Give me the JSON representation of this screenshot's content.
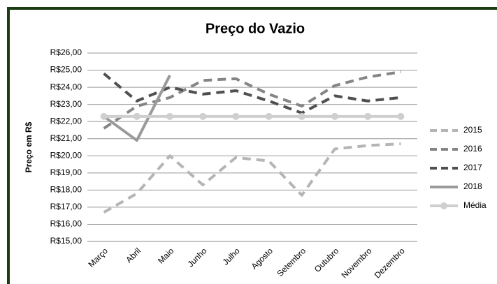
{
  "chart_data": {
    "type": "line",
    "title": "Preço do Vazio",
    "y_label": "Preço em R$",
    "categories": [
      "Março",
      "Abril",
      "Maio",
      "Junho",
      "Julho",
      "Agosto",
      "Setembro",
      "Outubro",
      "Novembro",
      "Dezembro"
    ],
    "series": [
      {
        "name": "2015",
        "color": "#b5b5b5",
        "dash": true,
        "values": [
          16.7,
          17.8,
          20.0,
          18.3,
          19.9,
          19.7,
          17.7,
          20.4,
          20.6,
          20.7
        ]
      },
      {
        "name": "2016",
        "color": "#858585",
        "dash": true,
        "values": [
          21.6,
          22.9,
          23.4,
          24.4,
          24.5,
          23.6,
          22.9,
          24.1,
          24.6,
          24.9
        ]
      },
      {
        "name": "2017",
        "color": "#505050",
        "dash": true,
        "values": [
          24.8,
          23.2,
          24.0,
          23.6,
          23.8,
          23.2,
          22.5,
          23.5,
          23.2,
          23.4
        ]
      },
      {
        "name": "2018",
        "color": "#9a9a9a",
        "dash": false,
        "values": [
          22.3,
          20.9,
          24.7,
          null,
          null,
          null,
          null,
          null,
          null,
          null
        ]
      },
      {
        "name": "Média",
        "color": "#cfcfcf",
        "dash": false,
        "markers": true,
        "values": [
          22.3,
          22.3,
          22.3,
          22.3,
          22.3,
          22.3,
          22.3,
          22.3,
          22.3,
          22.3
        ]
      }
    ],
    "ylim": [
      15,
      26
    ],
    "yticks": [
      {
        "value": 15,
        "label": "R$15,00"
      },
      {
        "value": 16,
        "label": "R$16,00"
      },
      {
        "value": 17,
        "label": "R$17,00"
      },
      {
        "value": 18,
        "label": "R$18,00"
      },
      {
        "value": 19,
        "label": "R$19,00"
      },
      {
        "value": 20,
        "label": "R$20,00"
      },
      {
        "value": 21,
        "label": "R$21,00"
      },
      {
        "value": 22,
        "label": "R$22,00"
      },
      {
        "value": 23,
        "label": "R$23,00"
      },
      {
        "value": 24,
        "label": "R$24,00"
      },
      {
        "value": 25,
        "label": "R$25,00"
      },
      {
        "value": 26,
        "label": "R$26,00"
      }
    ],
    "grid": true,
    "legend": "right"
  }
}
